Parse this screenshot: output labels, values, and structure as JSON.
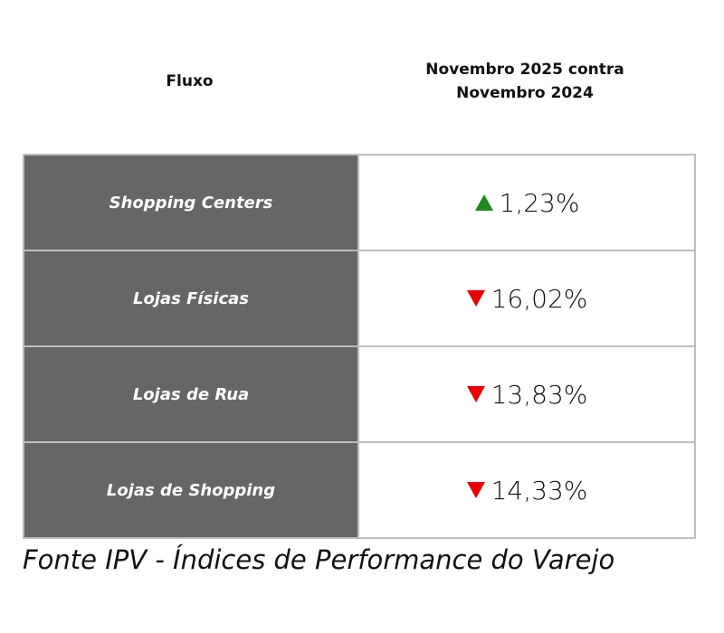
{
  "header": {
    "columns": [
      "Fluxo",
      "Novembro 2025 contra Novembro 2024"
    ]
  },
  "table": {
    "rows": [
      {
        "label": "Shopping Centers",
        "value": "1,23%",
        "direction": "up"
      },
      {
        "label": "Lojas Físicas",
        "value": "16,02%",
        "direction": "down"
      },
      {
        "label": "Lojas de Rua",
        "value": "13,83%",
        "direction": "down"
      },
      {
        "label": "Lojas de Shopping",
        "value": "14,33%",
        "direction": "down"
      }
    ]
  },
  "footer": {
    "source": "Fonte IPV - Índices de Performance do Varejo"
  }
}
